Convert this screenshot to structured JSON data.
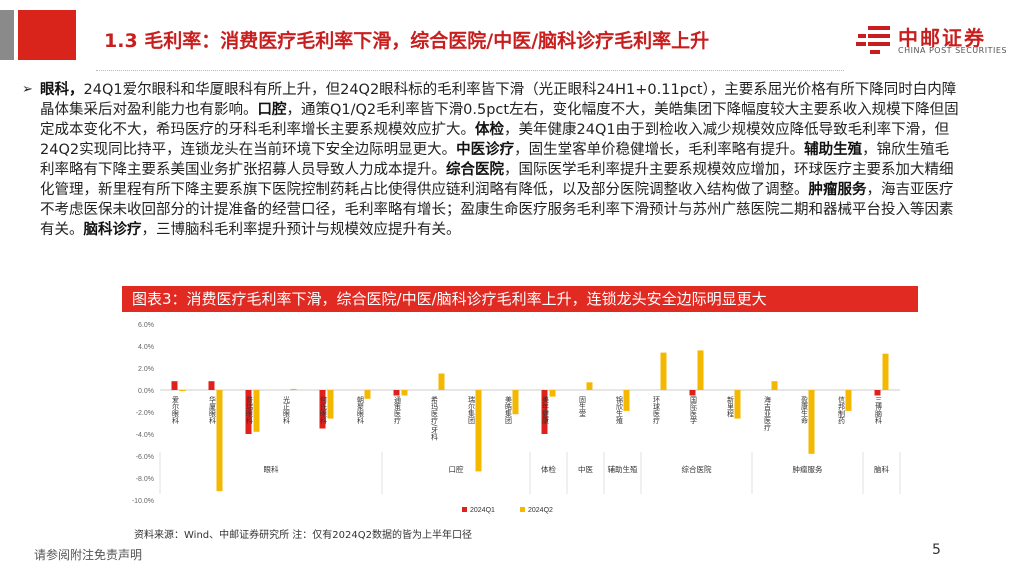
{
  "header": {
    "title": "1.3 毛利率：消费医疗毛利率下滑，综合医院/中医/脑科诊疗毛利率上升",
    "logo_cn": "中邮证券",
    "logo_en": "CHINA POST SECURITIES",
    "accent_color": "#c81e1e"
  },
  "paragraph": [
    {
      "text": "眼科，",
      "bold": true
    },
    {
      "text": "24Q1爱尔眼科和华厦眼科有所上升，但24Q2眼科标的毛利率皆下滑（光正眼科24H1+0.11pct），主要系屈光价格有所下降同时白内障晶体集采后对盈利能力也有影响。",
      "bold": false
    },
    {
      "text": "口腔",
      "bold": true
    },
    {
      "text": "，通策Q1/Q2毛利率皆下滑0.5pct左右，变化幅度不大，美皓集团下降幅度较大主要系收入规模下降但固定成本变化不大，希玛医疗的牙科毛利率增长主要系规模效应扩大。",
      "bold": false
    },
    {
      "text": "体检",
      "bold": true
    },
    {
      "text": "，美年健康24Q1由于到检收入减少规模效应降低导致毛利率下滑，但24Q2实现同比持平，连锁龙头在当前环境下安全边际明显更大。",
      "bold": false
    },
    {
      "text": "中医诊疗",
      "bold": true
    },
    {
      "text": "，固生堂客单价稳健增长，毛利率略有提升。",
      "bold": false
    },
    {
      "text": "辅助生殖",
      "bold": true
    },
    {
      "text": "，锦欣生殖毛利率略有下降主要系美国业务扩张招募人员导致人力成本提升。",
      "bold": false
    },
    {
      "text": "综合医院",
      "bold": true
    },
    {
      "text": "，国际医学毛利率提升主要系规模效应增加，环球医疗主要系加大精细化管理，新里程有所下降主要系旗下医院控制药耗占比使得供应链利润略有降低，以及部分医院调整收入结构做了调整。",
      "bold": false
    },
    {
      "text": "肿瘤服务",
      "bold": true
    },
    {
      "text": "，海吉亚医疗不考虑医保未收回部分的计提准备的经营口径，毛利率略有增长；盈康生命医疗服务毛利率下滑预计与苏州广慈医院二期和器械平台投入等因素有关。",
      "bold": false
    },
    {
      "text": "脑科诊疗",
      "bold": true
    },
    {
      "text": "，三博脑科毛利率提升预计与规模效应提升有关。",
      "bold": false
    }
  ],
  "chart_header": "图表3：消费医疗毛利率下滑，综合医院/中医/脑科诊疗毛利率上升，连锁龙头安全边际明显更大",
  "chart_data": {
    "type": "bar",
    "title": "图表3：消费医疗毛利率下滑，综合医院/中医/脑科诊疗毛利率上升，连锁龙头安全边际明显更大",
    "categories": [
      "爱尔眼科",
      "华厦眼科",
      "普瑞眼科",
      "光正眼科",
      "何氏眼科",
      "朝聚眼科",
      "通策医疗",
      "希玛医疗/牙科",
      "瑞尔集团",
      "美皓集团",
      "美年健康",
      "固生堂",
      "锦欣生殖",
      "环球医疗",
      "国际医学",
      "新里程",
      "海吉亚医疗",
      "盈康生命",
      "信邦制药",
      "三博脑科"
    ],
    "groups": [
      {
        "name": "眼科",
        "count": 6
      },
      {
        "name": "口腔",
        "count": 4
      },
      {
        "name": "体检",
        "count": 1
      },
      {
        "name": "中医",
        "count": 1
      },
      {
        "name": "辅助生殖",
        "count": 1
      },
      {
        "name": "综合医院",
        "count": 3
      },
      {
        "name": "肿瘤服务",
        "count": 3
      },
      {
        "name": "脑科",
        "count": 1
      }
    ],
    "series": [
      {
        "name": "2024Q1",
        "color": "#e0201b",
        "values": [
          0.8,
          0.8,
          -4.0,
          0.0,
          -3.5,
          0.0,
          -0.5,
          0.0,
          0.0,
          0.0,
          -4.0,
          0.0,
          0.0,
          0.0,
          -0.5,
          0.0,
          0.0,
          0.0,
          0.0,
          -0.5
        ]
      },
      {
        "name": "2024Q2",
        "color": "#f5b800",
        "values": [
          -0.1,
          -9.2,
          -3.8,
          0.1,
          -2.6,
          -0.8,
          -0.5,
          1.5,
          -7.4,
          -2.2,
          -0.6,
          0.7,
          -1.9,
          3.4,
          3.6,
          -2.6,
          0.8,
          -5.8,
          -1.9,
          3.3
        ]
      }
    ],
    "yticks": [
      "6.0%",
      "4.0%",
      "2.0%",
      "0.0%",
      "-2.0%",
      "-4.0%",
      "-6.0%",
      "-8.0%",
      "-10.0%"
    ],
    "ylim": [
      -10,
      6
    ],
    "legend": [
      "2024Q1",
      "2024Q2"
    ],
    "legend_position": "bottom-center"
  },
  "source_note": "资料来源：Wind、中邮证券研究所  注：仅有2024Q2数据的皆为上半年口径",
  "footer": {
    "disclaimer": "请参阅附注免责声明",
    "page": "5"
  }
}
